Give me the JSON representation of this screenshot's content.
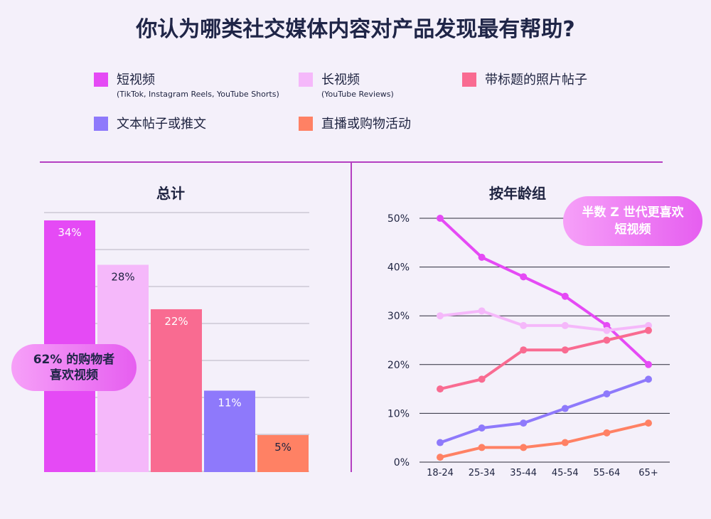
{
  "title": "你认为哪类社交媒体内容对产品发现最有帮助?",
  "legend": [
    {
      "label": "短视频",
      "sub": "(TikTok, Instagram Reels, YouTube Shorts)",
      "color": "#e54af5"
    },
    {
      "label": "长视频",
      "sub": "(YouTube Reviews)",
      "color": "#f5b8fa"
    },
    {
      "label": "带标题的照片帖子",
      "sub": "",
      "color": "#f96b91"
    },
    {
      "label": "文本帖子或推文",
      "sub": "",
      "color": "#8e79fb"
    },
    {
      "label": "直播或购物活动",
      "sub": "",
      "color": "#ff8164"
    }
  ],
  "callouts": {
    "left": "62% 的购物者\n喜欢视频",
    "right": "半数 Z 世代更喜欢\n短视频"
  },
  "chart_data": [
    {
      "type": "bar",
      "title": "总计",
      "categories": [
        "短视频",
        "长视频",
        "带标题的照片帖子",
        "文本帖子或推文",
        "直播或购物活动"
      ],
      "values": [
        34,
        28,
        22,
        11,
        5
      ],
      "data_labels": [
        "34%",
        "28%",
        "22%",
        "11%",
        "5%"
      ],
      "colors": [
        "#e54af5",
        "#f5b8fa",
        "#f96b91",
        "#8e79fb",
        "#ff8164"
      ],
      "ylim": [
        0,
        35
      ],
      "grid": true
    },
    {
      "type": "line",
      "title": "按年龄组",
      "x": [
        "18-24",
        "25-34",
        "35-44",
        "45-54",
        "55-64",
        "65+"
      ],
      "ylim": [
        0,
        50
      ],
      "yticks": [
        "0%",
        "10%",
        "20%",
        "30%",
        "40%",
        "50%"
      ],
      "grid": true,
      "series": [
        {
          "name": "短视频",
          "values": [
            50,
            42,
            38,
            34,
            28,
            20
          ],
          "color": "#e54af5"
        },
        {
          "name": "长视频",
          "values": [
            30,
            31,
            28,
            28,
            27,
            28
          ],
          "color": "#f5b8fa"
        },
        {
          "name": "带标题的照片帖子",
          "values": [
            15,
            17,
            23,
            23,
            25,
            27
          ],
          "color": "#f96b91"
        },
        {
          "name": "文本帖子或推文",
          "values": [
            4,
            7,
            8,
            11,
            14,
            17
          ],
          "color": "#8e79fb"
        },
        {
          "name": "直播或购物活动",
          "values": [
            1,
            3,
            3,
            4,
            6,
            8
          ],
          "color": "#ff8164"
        }
      ]
    }
  ]
}
